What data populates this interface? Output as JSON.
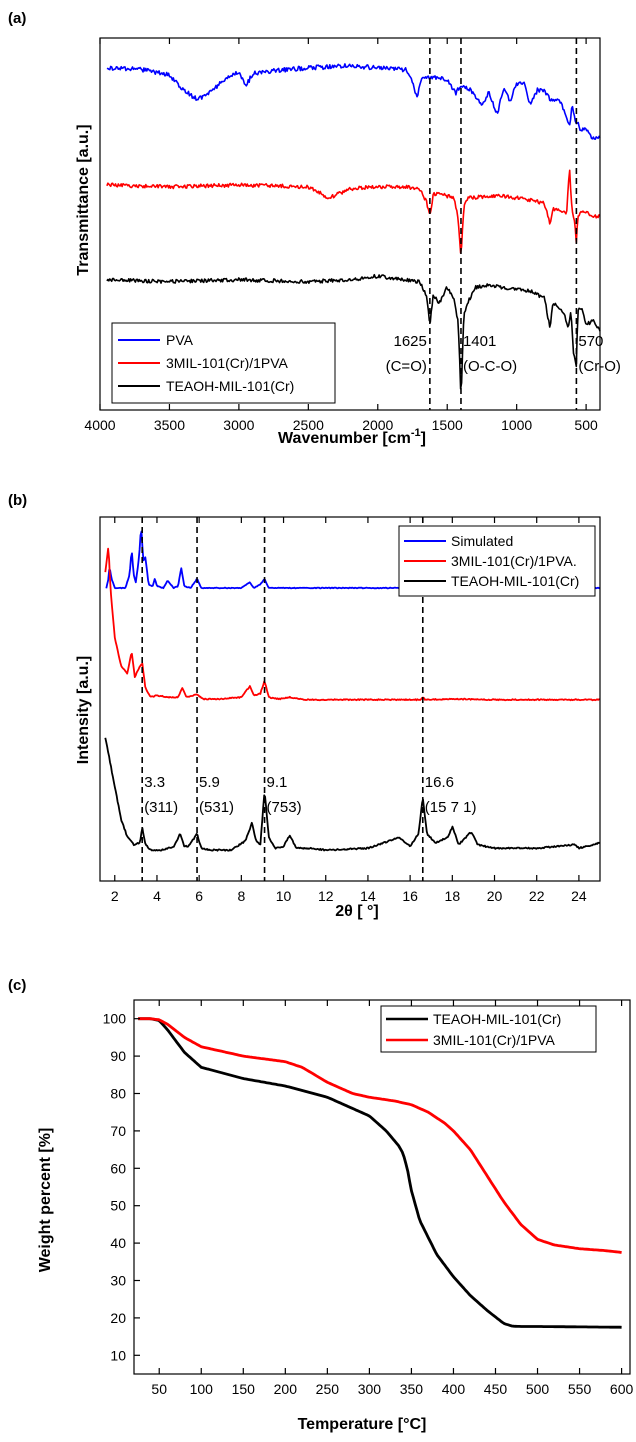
{
  "chart_data": [
    {
      "panel": "(a)",
      "type": "line",
      "xlabel": "Wavenumber [cm",
      "xlabel_sup": "-1",
      "xlabel_end": "]",
      "ylabel": "Transmittance [a.u.]",
      "xlim": [
        4000,
        400
      ],
      "ylim": [
        0,
        10
      ],
      "x_reversed": true,
      "xticks": [
        4000,
        3500,
        3000,
        2500,
        2000,
        1500,
        1000,
        500
      ],
      "dashed_lines_x": [
        1625,
        1401,
        570
      ],
      "annotations": [
        {
          "line1": "1625",
          "line2": "(C=O)",
          "x": 1625
        },
        {
          "line1": "1401",
          "line2": "(O-C-O)",
          "x": 1401
        },
        {
          "line1": "570",
          "line2": "(Cr-O)",
          "x": 570
        }
      ],
      "legend_position": "bottom-left",
      "series": [
        {
          "name": "PVA",
          "color": "#0000ff",
          "noise": 0.12,
          "x": [
            3950,
            3700,
            3500,
            3400,
            3300,
            3200,
            3100,
            3000,
            2950,
            2900,
            2800,
            2500,
            2200,
            2000,
            1800,
            1750,
            1720,
            1680,
            1600,
            1500,
            1440,
            1400,
            1330,
            1250,
            1200,
            1140,
            1090,
            1050,
            1000,
            950,
            900,
            850,
            800,
            750,
            700,
            650,
            620,
            600,
            580,
            560,
            540,
            500,
            450,
            400
          ],
          "y": [
            9.2,
            9.15,
            9.0,
            8.6,
            8.35,
            8.55,
            8.9,
            9.1,
            8.7,
            9.05,
            9.1,
            9.2,
            9.25,
            9.2,
            9.15,
            8.8,
            8.4,
            8.9,
            8.95,
            8.9,
            8.5,
            8.75,
            8.6,
            8.2,
            8.55,
            7.95,
            8.7,
            8.3,
            8.75,
            8.8,
            8.2,
            8.6,
            8.6,
            8.3,
            8.4,
            8.0,
            7.6,
            8.2,
            7.8,
            7.7,
            7.5,
            7.55,
            7.3,
            7.3
          ]
        },
        {
          "name": "3MIL-101(Cr)/1PVA",
          "color": "#ff0000",
          "noise": 0.1,
          "x": [
            3950,
            3500,
            3000,
            2500,
            2400,
            2350,
            2200,
            2000,
            1800,
            1700,
            1650,
            1625,
            1600,
            1550,
            1500,
            1450,
            1420,
            1401,
            1380,
            1350,
            1200,
            1100,
            1000,
            900,
            800,
            760,
            740,
            700,
            640,
            620,
            600,
            580,
            570,
            560,
            540,
            500,
            450,
            400
          ],
          "y": [
            6.05,
            6.0,
            6.05,
            6.0,
            5.8,
            5.7,
            5.95,
            6.0,
            6.0,
            5.95,
            5.6,
            5.2,
            5.8,
            5.85,
            5.75,
            5.7,
            5.1,
            4.1,
            5.5,
            5.7,
            5.75,
            5.75,
            5.7,
            5.65,
            5.55,
            5.0,
            5.4,
            5.4,
            5.3,
            6.5,
            5.3,
            5.0,
            4.5,
            5.2,
            5.3,
            5.3,
            5.2,
            5.2
          ]
        },
        {
          "name": "TEAOH-MIL-101(Cr)",
          "color": "#000000",
          "noise": 0.1,
          "x": [
            3950,
            3500,
            3000,
            2500,
            2200,
            2000,
            1800,
            1700,
            1650,
            1625,
            1600,
            1560,
            1500,
            1450,
            1420,
            1401,
            1380,
            1350,
            1300,
            1200,
            1100,
            1000,
            900,
            800,
            760,
            740,
            700,
            650,
            630,
            610,
            590,
            570,
            560,
            540,
            500,
            450,
            400
          ],
          "y": [
            3.5,
            3.45,
            3.5,
            3.45,
            3.5,
            3.6,
            3.5,
            3.45,
            3.1,
            2.3,
            3.1,
            2.85,
            3.3,
            3.0,
            2.3,
            0.3,
            2.6,
            2.9,
            3.3,
            3.35,
            3.3,
            3.25,
            3.2,
            3.0,
            2.2,
            2.9,
            2.8,
            2.5,
            2.2,
            2.7,
            1.5,
            1.2,
            2.6,
            2.8,
            2.3,
            2.4,
            2.1
          ]
        }
      ]
    },
    {
      "panel": "(b)",
      "type": "line",
      "xlabel": "2θ [ °]",
      "ylabel": "Intensity [a.u.]",
      "xlim": [
        1.3,
        25
      ],
      "ylim": [
        0,
        10
      ],
      "xticks": [
        2,
        4,
        6,
        8,
        10,
        12,
        14,
        16,
        18,
        20,
        22,
        24
      ],
      "dashed_lines_x": [
        3.3,
        5.9,
        9.1,
        16.6
      ],
      "annotations": [
        {
          "line1": "3.3",
          "line2": "(311)",
          "x": 3.3
        },
        {
          "line1": "5.9",
          "line2": "(531)",
          "x": 5.9
        },
        {
          "line1": "9.1",
          "line2": "(753)",
          "x": 9.1
        },
        {
          "line1": "16.6",
          "line2": "(15 7 1)",
          "x": 16.6
        }
      ],
      "legend_position": "top-right",
      "series": [
        {
          "name": "Simulated",
          "color": "#0000ff",
          "noise": 0.02,
          "x": [
            1.6,
            1.7,
            1.75,
            1.85,
            2.0,
            2.5,
            2.7,
            2.8,
            2.9,
            3.0,
            3.15,
            3.25,
            3.35,
            3.45,
            3.6,
            3.8,
            3.9,
            4.0,
            4.3,
            4.5,
            4.8,
            5.0,
            5.15,
            5.3,
            5.6,
            5.9,
            6.1,
            6.5,
            8.0,
            8.4,
            8.6,
            8.9,
            9.1,
            9.3,
            10.0,
            12,
            14,
            16,
            16.5,
            16.6,
            16.7,
            18,
            20,
            22,
            25
          ],
          "y": [
            8.05,
            8.3,
            8.65,
            8.3,
            8.05,
            8.05,
            8.4,
            9.1,
            8.4,
            8.2,
            8.9,
            9.75,
            8.8,
            8.9,
            8.15,
            8.1,
            8.3,
            8.1,
            8.05,
            8.25,
            8.05,
            8.1,
            8.6,
            8.1,
            8.05,
            8.3,
            8.05,
            8.05,
            8.05,
            8.2,
            8.05,
            8.15,
            8.3,
            8.05,
            8.05,
            8.05,
            8.05,
            8.05,
            8.05,
            8.12,
            8.05,
            8.05,
            8.05,
            8.05,
            8.05
          ]
        },
        {
          "name": "3MIL-101(Cr)/1PVA.",
          "color": "#ff0000",
          "noise": 0.03,
          "x": [
            1.55,
            1.6,
            1.7,
            1.8,
            2.0,
            2.3,
            2.6,
            2.8,
            2.95,
            3.1,
            3.3,
            3.45,
            3.7,
            4.0,
            4.5,
            5.0,
            5.2,
            5.4,
            5.9,
            6.2,
            7.0,
            8.0,
            8.4,
            8.6,
            8.9,
            9.1,
            9.3,
            9.8,
            10.3,
            11,
            14,
            16.5,
            16.6,
            16.7,
            18,
            20,
            25
          ],
          "y": [
            8.5,
            8.7,
            9.2,
            8.0,
            6.7,
            5.9,
            5.7,
            6.3,
            5.6,
            5.8,
            6.0,
            5.3,
            5.05,
            5.1,
            5.05,
            5.05,
            5.3,
            5.05,
            5.12,
            5.0,
            5.0,
            5.05,
            5.35,
            5.1,
            5.15,
            5.5,
            5.05,
            5.0,
            5.05,
            4.98,
            4.98,
            4.98,
            5.05,
            4.98,
            5.0,
            4.98,
            4.98
          ]
        },
        {
          "name": "TEAOH-MIL-101(Cr)",
          "color": "#000000",
          "noise": 0.04,
          "x": [
            1.55,
            1.8,
            2.0,
            2.3,
            2.6,
            2.9,
            3.2,
            3.3,
            3.45,
            3.7,
            4.2,
            4.8,
            5.1,
            5.3,
            5.5,
            5.9,
            6.1,
            6.5,
            7.5,
            8.2,
            8.5,
            8.7,
            8.9,
            9.1,
            9.3,
            9.6,
            10.0,
            10.3,
            10.6,
            11.2,
            12,
            14,
            15.5,
            16.0,
            16.4,
            16.6,
            16.8,
            17.2,
            17.8,
            18.0,
            18.3,
            18.9,
            19.2,
            20,
            22,
            23.8,
            24,
            25
          ],
          "y": [
            3.95,
            3.2,
            2.6,
            1.7,
            1.2,
            1.0,
            1.05,
            1.5,
            1.0,
            0.85,
            0.85,
            0.95,
            1.3,
            0.95,
            0.95,
            1.3,
            0.9,
            0.85,
            0.85,
            1.1,
            1.6,
            1.1,
            1.0,
            2.5,
            1.2,
            0.9,
            0.95,
            1.25,
            0.9,
            0.9,
            0.85,
            0.9,
            1.2,
            0.95,
            1.3,
            2.3,
            1.3,
            1.05,
            1.2,
            1.5,
            1.0,
            1.35,
            1.0,
            0.9,
            0.9,
            1.0,
            0.9,
            1.05
          ]
        }
      ]
    },
    {
      "panel": "(c)",
      "type": "line",
      "xlabel": "Temperature [°C]",
      "ylabel": "Weight percent [%]",
      "xlim": [
        20,
        610
      ],
      "ylim": [
        5,
        105
      ],
      "xticks": [
        50,
        100,
        150,
        200,
        250,
        300,
        350,
        400,
        450,
        500,
        550,
        600
      ],
      "yticks": [
        10,
        20,
        30,
        40,
        50,
        60,
        70,
        80,
        90,
        100
      ],
      "legend_position": "top-right",
      "series": [
        {
          "name": "TEAOH-MIL-101(Cr)",
          "color": "#000000",
          "noise": 0,
          "x": [
            25,
            40,
            50,
            60,
            70,
            80,
            100,
            150,
            200,
            250,
            300,
            320,
            335,
            340,
            345,
            350,
            360,
            380,
            400,
            420,
            440,
            460,
            470,
            480,
            500,
            550,
            600
          ],
          "y": [
            100,
            100,
            99.5,
            97,
            94,
            91,
            87,
            84,
            82,
            79,
            74,
            70,
            66,
            64,
            60,
            54,
            46,
            37,
            31,
            26,
            22,
            18.5,
            17.8,
            17.7,
            17.7,
            17.6,
            17.5
          ]
        },
        {
          "name": "3MIL-101(Cr)/1PVA",
          "color": "#ff0000",
          "noise": 0,
          "x": [
            25,
            40,
            50,
            60,
            80,
            100,
            150,
            200,
            220,
            250,
            280,
            300,
            330,
            350,
            370,
            390,
            400,
            420,
            440,
            460,
            480,
            500,
            520,
            550,
            580,
            600
          ],
          "y": [
            100,
            100,
            99.7,
            98.5,
            95,
            92.5,
            90,
            88.5,
            87,
            83,
            80,
            79,
            78,
            77,
            75,
            72,
            70,
            65,
            58,
            51,
            45,
            41,
            39.5,
            38.5,
            38,
            37.5
          ]
        }
      ]
    }
  ]
}
